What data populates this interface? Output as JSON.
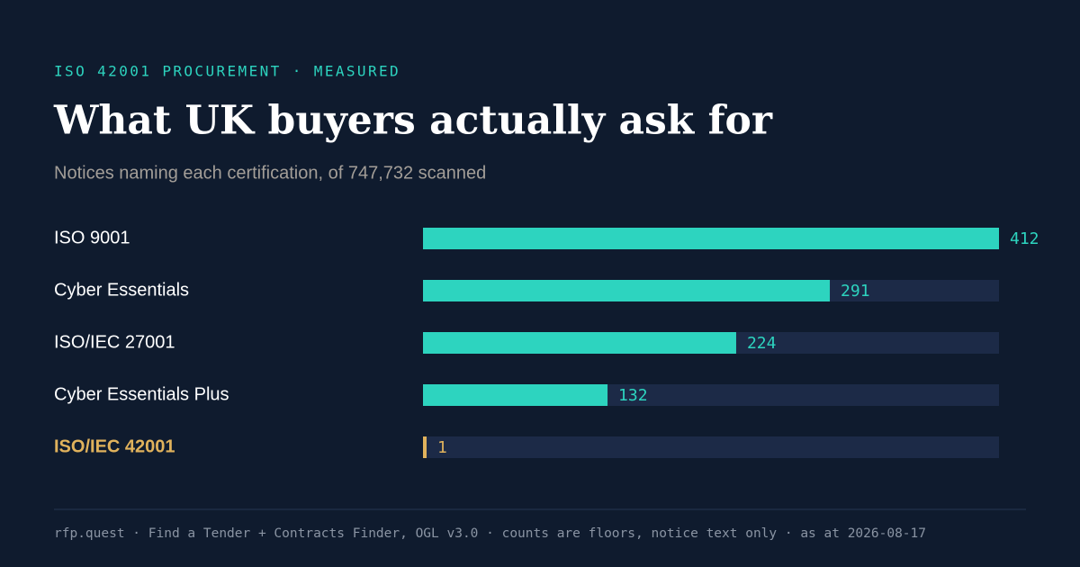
{
  "eyebrow": "ISO 42001 PROCUREMENT · MEASURED",
  "footer": "rfp.quest · Find a Tender + Contracts Finder, OGL v3.0 · counts are floors, notice text only · as at 2026-08-17",
  "chart_data": {
    "type": "bar",
    "orientation": "horizontal",
    "title": "What UK buyers actually ask for",
    "subtitle": "Notices naming each certification, of 747,732 scanned",
    "categories": [
      "ISO 9001",
      "Cyber Essentials",
      "ISO/IEC 27001",
      "Cyber Essentials Plus",
      "ISO/IEC 42001"
    ],
    "values": [
      412,
      291,
      224,
      132,
      1
    ],
    "color": "#2dd4bf",
    "colors": [
      "#2dd4bf",
      "#2dd4bf",
      "#2dd4bf",
      "#2dd4bf",
      "#e0b25c"
    ],
    "xlim": [
      0,
      412
    ]
  }
}
